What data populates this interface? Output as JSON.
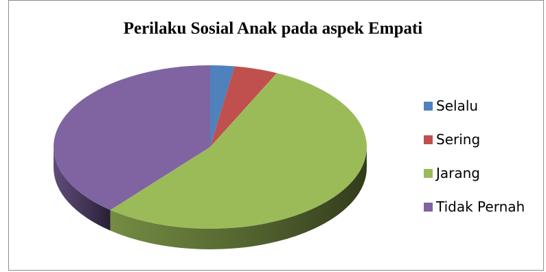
{
  "chart_data": {
    "type": "pie",
    "title": "Perilaku Sosial Anak pada aspek Empati",
    "categories": [
      "Selalu",
      "Sering",
      "Jarang",
      "Tidak Pernah"
    ],
    "values": [
      2.5,
      4.5,
      54,
      39
    ],
    "colors": [
      "#4F81BD",
      "#C0504D",
      "#9BBB59",
      "#8064A2"
    ],
    "legend_position": "right",
    "style": "3d"
  }
}
